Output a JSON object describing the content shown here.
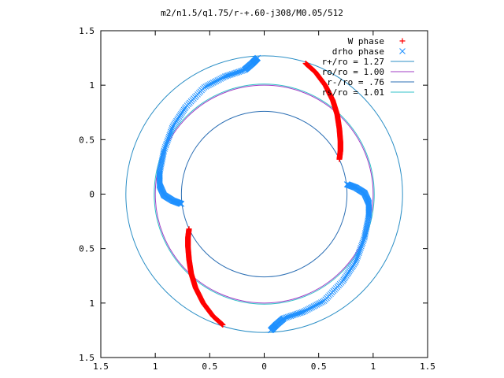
{
  "chart_data": {
    "type": "scatter",
    "title": "m2/n1.5/q1.75/r-+.60-j308/M0.05/512",
    "xlabel": "",
    "ylabel": "",
    "xlim": [
      -1.5,
      1.5
    ],
    "ylim": [
      -1.5,
      1.5
    ],
    "x_tick_labels": [
      "1.5",
      "1",
      "0.5",
      "0",
      "0.5",
      "1",
      "1.5"
    ],
    "y_tick_labels": [
      "1.5",
      "1",
      "0.5",
      "0",
      "0.5",
      "1",
      "1.5"
    ],
    "grid": false,
    "legend_position": "top-right",
    "circles": [
      {
        "name": "r+/ro = 1.27",
        "radius": 1.27,
        "color": "#2c8fc6"
      },
      {
        "name": "ro/ro = 1.00",
        "radius": 1.0,
        "color": "#a23cc6"
      },
      {
        "name": "r-/ro = .76",
        "radius": 0.76,
        "color": "#2c6fb4"
      },
      {
        "name": "rs/ro = 1.01",
        "radius": 1.01,
        "color": "#30c0c8"
      }
    ],
    "series": [
      {
        "name": "W phase",
        "marker": "plus",
        "color": "#ff0000",
        "arms": [
          [
            [
              0.38,
              1.2
            ],
            [
              0.47,
              1.12
            ],
            [
              0.56,
              1.0
            ],
            [
              0.63,
              0.86
            ],
            [
              0.67,
              0.73
            ],
            [
              0.69,
              0.6
            ],
            [
              0.7,
              0.48
            ],
            [
              0.7,
              0.4
            ],
            [
              0.69,
              0.32
            ]
          ],
          [
            [
              -0.38,
              -1.2
            ],
            [
              -0.47,
              -1.12
            ],
            [
              -0.56,
              -1.0
            ],
            [
              -0.63,
              -0.86
            ],
            [
              -0.67,
              -0.73
            ],
            [
              -0.69,
              -0.6
            ],
            [
              -0.7,
              -0.48
            ],
            [
              -0.7,
              -0.4
            ],
            [
              -0.69,
              -0.32
            ]
          ]
        ]
      },
      {
        "name": "drho phase",
        "marker": "cross",
        "color": "#1e90ff",
        "arms": [
          [
            [
              0.76,
              0.09
            ],
            [
              0.84,
              0.06
            ],
            [
              0.92,
              0.01
            ],
            [
              0.96,
              -0.08
            ],
            [
              0.96,
              -0.2
            ],
            [
              0.92,
              -0.4
            ],
            [
              0.84,
              -0.62
            ],
            [
              0.72,
              -0.8
            ],
            [
              0.55,
              -0.98
            ],
            [
              0.36,
              -1.08
            ],
            [
              0.18,
              -1.14
            ],
            [
              0.11,
              -1.2
            ],
            [
              0.06,
              -1.25
            ]
          ],
          [
            [
              -0.76,
              -0.09
            ],
            [
              -0.84,
              -0.06
            ],
            [
              -0.92,
              -0.01
            ],
            [
              -0.96,
              0.08
            ],
            [
              -0.96,
              0.2
            ],
            [
              -0.92,
              0.4
            ],
            [
              -0.84,
              0.62
            ],
            [
              -0.72,
              0.8
            ],
            [
              -0.55,
              0.98
            ],
            [
              -0.36,
              1.08
            ],
            [
              -0.18,
              1.14
            ],
            [
              -0.11,
              1.2
            ],
            [
              -0.06,
              1.25
            ]
          ]
        ]
      }
    ]
  }
}
